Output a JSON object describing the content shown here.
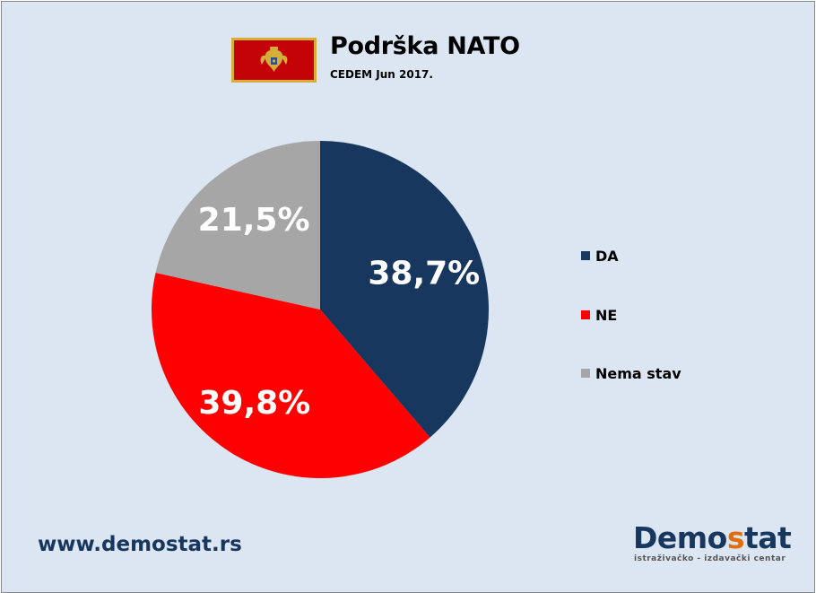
{
  "header": {
    "title": "Podrška NATO",
    "subtitle": "CEDEM Jun 2017."
  },
  "flag": {
    "icon": "montenegro-flag-icon",
    "field_color": "#c40308",
    "border_color": "#d4af37"
  },
  "chart_data": {
    "type": "pie",
    "title": "Podrška NATO",
    "subtitle": "CEDEM Jun 2017.",
    "start": "12 o'clock",
    "direction": "clockwise",
    "legend_position": "right",
    "slices": [
      {
        "name": "DA",
        "value": 38.7,
        "label": "38,7%",
        "color": "#17375e"
      },
      {
        "name": "NE",
        "value": 39.8,
        "label": "39,8%",
        "color": "#ff0000"
      },
      {
        "name": "Nema stav",
        "value": 21.5,
        "label": "21,5%",
        "color": "#a6a6a6"
      }
    ]
  },
  "footer": {
    "url": "www.demostat.rs",
    "logo_part1": "Demo",
    "logo_part2": "s",
    "logo_part3": "tat",
    "logo_tagline": "istraživačko - izdavački centar",
    "logo_color": "#17375e",
    "logo_accent_color": "#e46c0a"
  }
}
